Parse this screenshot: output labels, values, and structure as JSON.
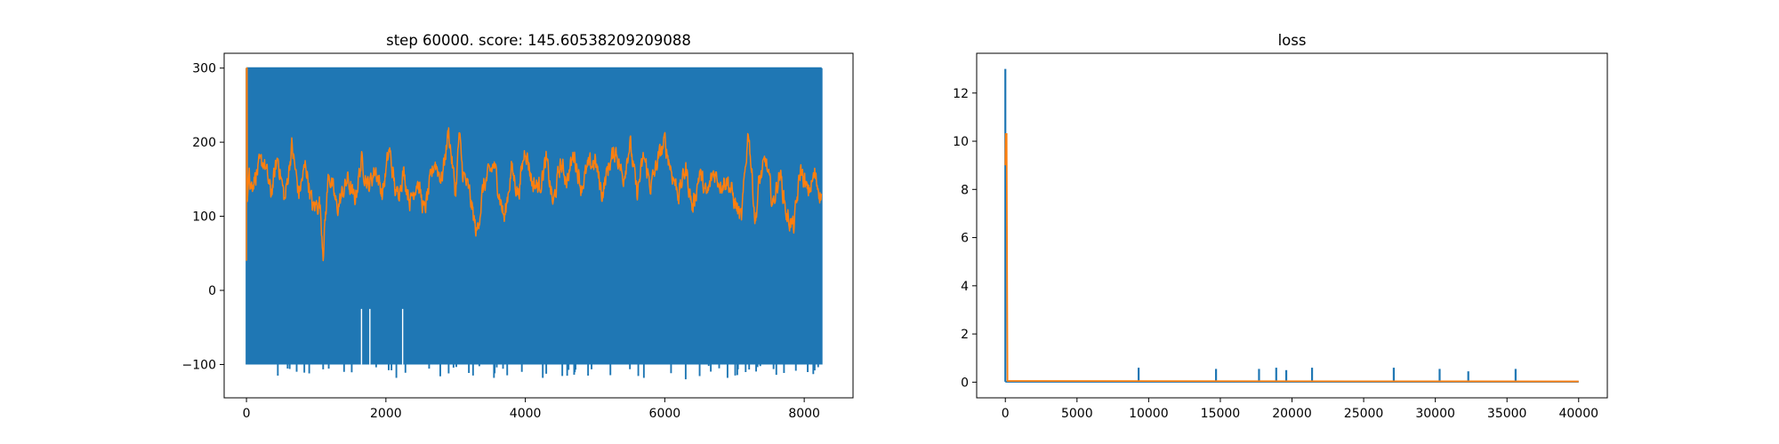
{
  "chart_data": [
    {
      "type": "line",
      "title": "step 60000. score: 145.60538209209088",
      "xlim": [
        -320,
        8700
      ],
      "ylim": [
        -145,
        320
      ],
      "xticks": [
        0,
        2000,
        4000,
        6000,
        8000
      ],
      "yticks": [
        -100,
        0,
        100,
        200,
        300
      ],
      "xtick_labels": [
        "0",
        "2000",
        "4000",
        "6000",
        "8000"
      ],
      "ytick_labels": [
        "−100",
        "0",
        "100",
        "200",
        "300"
      ],
      "grid": false,
      "legend": "none",
      "series": [
        {
          "color": "#1f77b4",
          "description_values": {
            "x_range": [
              0,
              8250
            ],
            "upper_envelope": 300,
            "lower_envelope": -100,
            "dips": [
              [
                450,
                -115
              ],
              [
                900,
                -112
              ],
              [
                1400,
                -110
              ],
              [
                2150,
                -118
              ],
              [
                2900,
                -112
              ],
              [
                3550,
                -118
              ],
              [
                4250,
                -118
              ],
              [
                4900,
                -115
              ],
              [
                5700,
                -118
              ],
              [
                6300,
                -120
              ],
              [
                6900,
                -118
              ],
              [
                7600,
                -114
              ],
              [
                8150,
                -108
              ]
            ],
            "gaps": [
              [
                1650,
                -25
              ],
              [
                1770,
                -25
              ],
              [
                2240,
                -25
              ]
            ]
          }
        },
        {
          "color": "#ff7f0e",
          "x_range": [
            0,
            8250
          ],
          "start_values": [
            40,
            300,
            120,
            165
          ],
          "keypoints": [
            [
              60,
              140
            ],
            [
              150,
              160
            ],
            [
              250,
              175
            ],
            [
              350,
              130
            ],
            [
              450,
              180
            ],
            [
              550,
              120
            ],
            [
              650,
              195
            ],
            [
              750,
              130
            ],
            [
              850,
              170
            ],
            [
              950,
              110
            ],
            [
              1050,
              120
            ],
            [
              1100,
              55
            ],
            [
              1180,
              160
            ],
            [
              1300,
              110
            ],
            [
              1450,
              150
            ],
            [
              1550,
              120
            ],
            [
              1650,
              175
            ],
            [
              1750,
              140
            ],
            [
              1850,
              165
            ],
            [
              1950,
              130
            ],
            [
              2050,
              190
            ],
            [
              2150,
              125
            ],
            [
              2250,
              160
            ],
            [
              2350,
              120
            ],
            [
              2450,
              150
            ],
            [
              2550,
              105
            ],
            [
              2700,
              175
            ],
            [
              2800,
              150
            ],
            [
              2900,
              215
            ],
            [
              3000,
              130
            ],
            [
              3050,
              210
            ],
            [
              3100,
              160
            ],
            [
              3200,
              130
            ],
            [
              3300,
              75
            ],
            [
              3400,
              140
            ],
            [
              3550,
              170
            ],
            [
              3700,
              95
            ],
            [
              3800,
              165
            ],
            [
              3900,
              130
            ],
            [
              4000,
              195
            ],
            [
              4100,
              145
            ],
            [
              4200,
              140
            ],
            [
              4300,
              175
            ],
            [
              4400,
              115
            ],
            [
              4500,
              170
            ],
            [
              4600,
              150
            ],
            [
              4700,
              185
            ],
            [
              4800,
              140
            ],
            [
              4900,
              165
            ],
            [
              5000,
              175
            ],
            [
              5100,
              130
            ],
            [
              5200,
              170
            ],
            [
              5300,
              190
            ],
            [
              5400,
              150
            ],
            [
              5500,
              200
            ],
            [
              5600,
              130
            ],
            [
              5700,
              180
            ],
            [
              5800,
              140
            ],
            [
              5900,
              175
            ],
            [
              6000,
              200
            ],
            [
              6100,
              160
            ],
            [
              6200,
              130
            ],
            [
              6300,
              165
            ],
            [
              6400,
              110
            ],
            [
              6500,
              160
            ],
            [
              6600,
              125
            ],
            [
              6700,
              160
            ],
            [
              6800,
              145
            ],
            [
              6900,
              150
            ],
            [
              7000,
              120
            ],
            [
              7100,
              95
            ],
            [
              7200,
              220
            ],
            [
              7300,
              90
            ],
            [
              7350,
              145
            ],
            [
              7450,
              175
            ],
            [
              7550,
              115
            ],
            [
              7650,
              160
            ],
            [
              7750,
              100
            ],
            [
              7850,
              85
            ],
            [
              7950,
              165
            ],
            [
              8050,
              130
            ],
            [
              8150,
              155
            ],
            [
              8250,
              125
            ]
          ]
        }
      ]
    },
    {
      "type": "line",
      "title": "loss",
      "xlim": [
        -2000,
        42000
      ],
      "ylim": [
        -0.65,
        13.65
      ],
      "xticks": [
        0,
        5000,
        10000,
        15000,
        20000,
        25000,
        30000,
        35000,
        40000
      ],
      "yticks": [
        0,
        2,
        4,
        6,
        8,
        10,
        12
      ],
      "xtick_labels": [
        "0",
        "5000",
        "10000",
        "15000",
        "20000",
        "25000",
        "30000",
        "35000",
        "40000"
      ],
      "ytick_labels": [
        "0",
        "2",
        "4",
        "6",
        "8",
        "10",
        "12"
      ],
      "grid": false,
      "legend": "none",
      "series": [
        {
          "color": "#1f77b4",
          "x_range": [
            0,
            40000
          ],
          "baseline": 0.02,
          "spikes": [
            [
              0,
              13.0
            ],
            [
              9300,
              0.6
            ],
            [
              14700,
              0.55
            ],
            [
              17700,
              0.55
            ],
            [
              18900,
              0.6
            ],
            [
              19600,
              0.5
            ],
            [
              21400,
              0.6
            ],
            [
              27100,
              0.6
            ],
            [
              30300,
              0.55
            ],
            [
              32300,
              0.45
            ],
            [
              35600,
              0.55
            ]
          ]
        },
        {
          "color": "#ff7f0e",
          "x_range": [
            0,
            40000
          ],
          "points": [
            [
              0,
              9.0
            ],
            [
              30,
              10.3
            ],
            [
              90,
              10.3
            ],
            [
              150,
              0.05
            ],
            [
              40000,
              0.03
            ]
          ]
        }
      ]
    }
  ]
}
